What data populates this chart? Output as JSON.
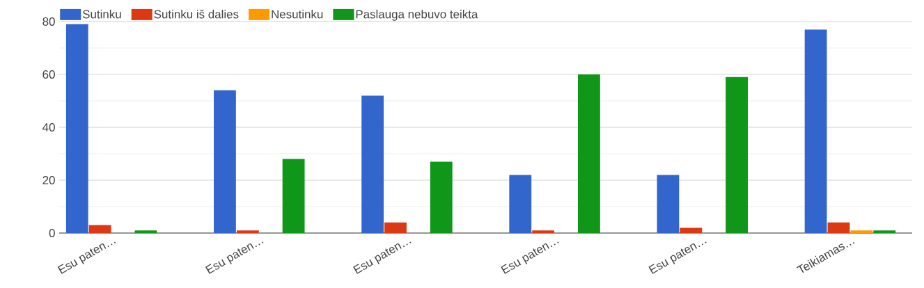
{
  "chart_data": {
    "type": "bar",
    "categories": [
      "Esu paten…",
      "Esu paten…",
      "Esu paten…",
      "Esu paten…",
      "Esu paten…",
      "Teikiamas…"
    ],
    "series": [
      {
        "name": "Sutinku",
        "color": "#3366cc",
        "values": [
          79,
          54,
          52,
          22,
          22,
          77
        ]
      },
      {
        "name": "Sutinku iš dalies",
        "color": "#dc3912",
        "values": [
          3,
          1,
          4,
          1,
          2,
          4
        ]
      },
      {
        "name": "Nesutinku",
        "color": "#ff9900",
        "values": [
          0,
          0,
          0,
          0,
          0,
          1
        ]
      },
      {
        "name": "Paslauga nebuvo teikta",
        "color": "#109618",
        "values": [
          1,
          28,
          27,
          60,
          59,
          1
        ]
      }
    ],
    "ylim": [
      0,
      80
    ],
    "yticks": [
      0,
      20,
      40,
      60,
      80
    ],
    "grid": "y",
    "legend": "top"
  }
}
